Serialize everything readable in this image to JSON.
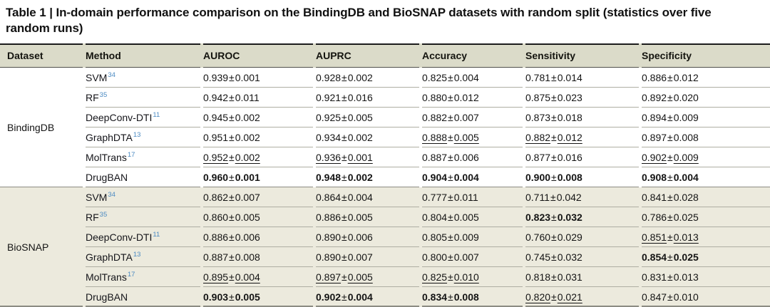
{
  "title": "Table 1 | In-domain performance comparison on the BindingDB and BioSNAP datasets with random split (statistics over five random runs)",
  "pm_sign": "±",
  "colors": {
    "header": "#dbdbc9",
    "alt": "#eceadd",
    "top": "#1c1c1c",
    "dark": "#50504a",
    "light": "#aeaea3",
    "mid": "#8c8c83",
    "ref": "#4b8ac2",
    "text": "#141414"
  },
  "table": {
    "columns": [
      "Dataset",
      "Method",
      "AUROC",
      "AUPRC",
      "Accuracy",
      "Sensitivity",
      "Specificity"
    ],
    "sections": [
      {
        "dataset": "BindingDB",
        "rows": [
          {
            "method": "SVM",
            "ref": "34",
            "values": [
              {
                "v": "0.939",
                "e": "0.001",
                "s": "p"
              },
              {
                "v": "0.928",
                "e": "0.002",
                "s": "p"
              },
              {
                "v": "0.825",
                "e": "0.004",
                "s": "p"
              },
              {
                "v": "0.781",
                "e": "0.014",
                "s": "p"
              },
              {
                "v": "0.886",
                "e": "0.012",
                "s": "p"
              }
            ]
          },
          {
            "method": "RF",
            "ref": "35",
            "values": [
              {
                "v": "0.942",
                "e": "0.011",
                "s": "p"
              },
              {
                "v": "0.921",
                "e": "0.016",
                "s": "p"
              },
              {
                "v": "0.880",
                "e": "0.012",
                "s": "p"
              },
              {
                "v": "0.875",
                "e": "0.023",
                "s": "p"
              },
              {
                "v": "0.892",
                "e": "0.020",
                "s": "p"
              }
            ]
          },
          {
            "method": "DeepConv-DTI",
            "ref": "11",
            "values": [
              {
                "v": "0.945",
                "e": "0.002",
                "s": "p"
              },
              {
                "v": "0.925",
                "e": "0.005",
                "s": "p"
              },
              {
                "v": "0.882",
                "e": "0.007",
                "s": "p"
              },
              {
                "v": "0.873",
                "e": "0.018",
                "s": "p"
              },
              {
                "v": "0.894",
                "e": "0.009",
                "s": "p"
              }
            ]
          },
          {
            "method": "GraphDTA",
            "ref": "13",
            "values": [
              {
                "v": "0.951",
                "e": "0.002",
                "s": "p"
              },
              {
                "v": "0.934",
                "e": "0.002",
                "s": "p"
              },
              {
                "v": "0.888",
                "e": "0.005",
                "s": "u"
              },
              {
                "v": "0.882",
                "e": "0.012",
                "s": "u"
              },
              {
                "v": "0.897",
                "e": "0.008",
                "s": "p"
              }
            ]
          },
          {
            "method": "MolTrans",
            "ref": "17",
            "values": [
              {
                "v": "0.952",
                "e": "0.002",
                "s": "u"
              },
              {
                "v": "0.936",
                "e": "0.001",
                "s": "u"
              },
              {
                "v": "0.887",
                "e": "0.006",
                "s": "p"
              },
              {
                "v": "0.877",
                "e": "0.016",
                "s": "p"
              },
              {
                "v": "0.902",
                "e": "0.009",
                "s": "u"
              }
            ]
          },
          {
            "method": "DrugBAN",
            "ref": "",
            "values": [
              {
                "v": "0.960",
                "e": "0.001",
                "s": "b"
              },
              {
                "v": "0.948",
                "e": "0.002",
                "s": "b"
              },
              {
                "v": "0.904",
                "e": "0.004",
                "s": "b"
              },
              {
                "v": "0.900",
                "e": "0.008",
                "s": "b"
              },
              {
                "v": "0.908",
                "e": "0.004",
                "s": "b"
              }
            ]
          }
        ]
      },
      {
        "dataset": "BioSNAP",
        "rows": [
          {
            "method": "SVM",
            "ref": "34",
            "values": [
              {
                "v": "0.862",
                "e": "0.007",
                "s": "p"
              },
              {
                "v": "0.864",
                "e": "0.004",
                "s": "p"
              },
              {
                "v": "0.777",
                "e": "0.011",
                "s": "p"
              },
              {
                "v": "0.711",
                "e": "0.042",
                "s": "p"
              },
              {
                "v": "0.841",
                "e": "0.028",
                "s": "p"
              }
            ]
          },
          {
            "method": "RF",
            "ref": "35",
            "values": [
              {
                "v": "0.860",
                "e": "0.005",
                "s": "p"
              },
              {
                "v": "0.886",
                "e": "0.005",
                "s": "p"
              },
              {
                "v": "0.804",
                "e": "0.005",
                "s": "p"
              },
              {
                "v": "0.823",
                "e": "0.032",
                "s": "b"
              },
              {
                "v": "0.786",
                "e": "0.025",
                "s": "p"
              }
            ]
          },
          {
            "method": "DeepConv-DTI",
            "ref": "11",
            "values": [
              {
                "v": "0.886",
                "e": "0.006",
                "s": "p"
              },
              {
                "v": "0.890",
                "e": "0.006",
                "s": "p"
              },
              {
                "v": "0.805",
                "e": "0.009",
                "s": "p"
              },
              {
                "v": "0.760",
                "e": "0.029",
                "s": "p"
              },
              {
                "v": "0.851",
                "e": "0.013",
                "s": "u"
              }
            ]
          },
          {
            "method": "GraphDTA",
            "ref": "13",
            "values": [
              {
                "v": "0.887",
                "e": "0.008",
                "s": "p"
              },
              {
                "v": "0.890",
                "e": "0.007",
                "s": "p"
              },
              {
                "v": "0.800",
                "e": "0.007",
                "s": "p"
              },
              {
                "v": "0.745",
                "e": "0.032",
                "s": "p"
              },
              {
                "v": "0.854",
                "e": "0.025",
                "s": "b"
              }
            ]
          },
          {
            "method": "MolTrans",
            "ref": "17",
            "values": [
              {
                "v": "0.895",
                "e": "0.004",
                "s": "u"
              },
              {
                "v": "0.897",
                "e": "0.005",
                "s": "u"
              },
              {
                "v": "0.825",
                "e": "0.010",
                "s": "u"
              },
              {
                "v": "0.818",
                "e": "0.031",
                "s": "p"
              },
              {
                "v": "0.831",
                "e": "0.013",
                "s": "p"
              }
            ]
          },
          {
            "method": "DrugBAN",
            "ref": "",
            "values": [
              {
                "v": "0.903",
                "e": "0.005",
                "s": "b"
              },
              {
                "v": "0.902",
                "e": "0.004",
                "s": "b"
              },
              {
                "v": "0.834",
                "e": "0.008",
                "s": "b"
              },
              {
                "v": "0.820",
                "e": "0.021",
                "s": "u"
              },
              {
                "v": "0.847",
                "e": "0.010",
                "s": "p"
              }
            ]
          }
        ]
      }
    ]
  }
}
